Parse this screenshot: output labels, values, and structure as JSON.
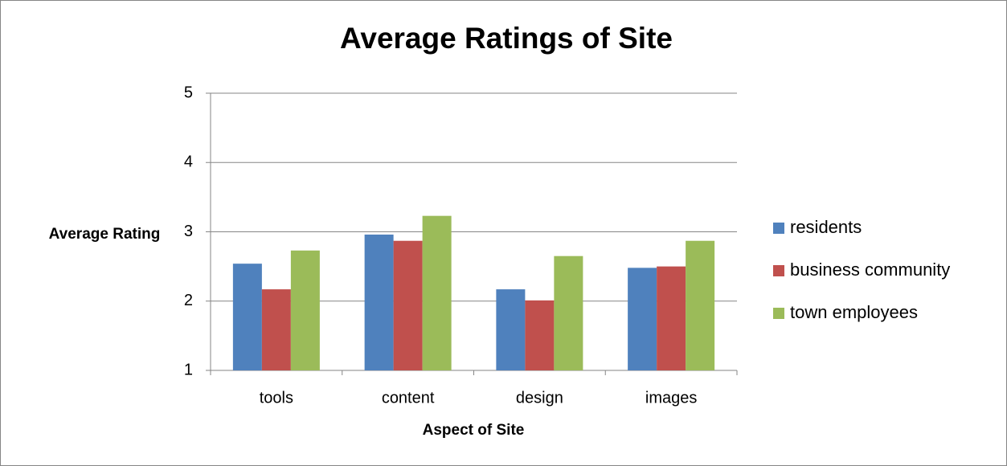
{
  "chart_data": {
    "type": "bar",
    "title": "Average Ratings of Site",
    "x_label": "Aspect of Site",
    "y_label": "Average Rating",
    "categories": [
      "tools",
      "content",
      "design",
      "images"
    ],
    "series": [
      {
        "name": "residents",
        "color": "#4f81bd",
        "values": [
          2.54,
          2.96,
          2.17,
          2.48
        ]
      },
      {
        "name": "business community",
        "color": "#c0504d",
        "values": [
          2.17,
          2.87,
          2.01,
          2.5
        ]
      },
      {
        "name": "town employees",
        "color": "#9bbb59",
        "values": [
          2.73,
          3.23,
          2.65,
          2.87
        ]
      }
    ],
    "ylim": [
      1,
      5
    ],
    "yticks": [
      1,
      2,
      3,
      4,
      5
    ],
    "grid": true,
    "legend": "right"
  }
}
